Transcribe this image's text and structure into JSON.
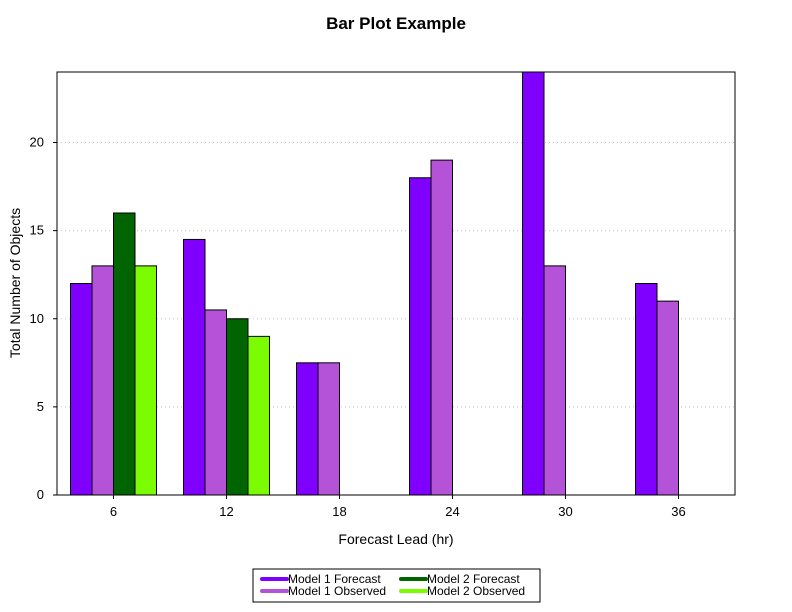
{
  "chart_data": {
    "type": "bar",
    "title": "Bar Plot Example",
    "xlabel": "Forecast Lead (hr)",
    "ylabel": "Total Number of Objects",
    "categories": [
      "6",
      "12",
      "18",
      "24",
      "30",
      "36"
    ],
    "ylim": [
      0,
      24
    ],
    "yticks": [
      0,
      5,
      10,
      15,
      20
    ],
    "grid": true,
    "legend_position": "bottom",
    "series": [
      {
        "name": "Model 1 Forecast",
        "color": "#7f00ff",
        "values": [
          12,
          14.5,
          7.5,
          18,
          24,
          12
        ]
      },
      {
        "name": "Model 1 Observed",
        "color": "#b452d8",
        "values": [
          13,
          10.5,
          7.5,
          19,
          13,
          11
        ]
      },
      {
        "name": "Model 2 Forecast",
        "color": "#006400",
        "values": [
          16,
          10,
          null,
          null,
          null,
          null
        ]
      },
      {
        "name": "Model 2 Observed",
        "color": "#7cfc00",
        "values": [
          13,
          9,
          null,
          null,
          null,
          null
        ]
      }
    ]
  }
}
